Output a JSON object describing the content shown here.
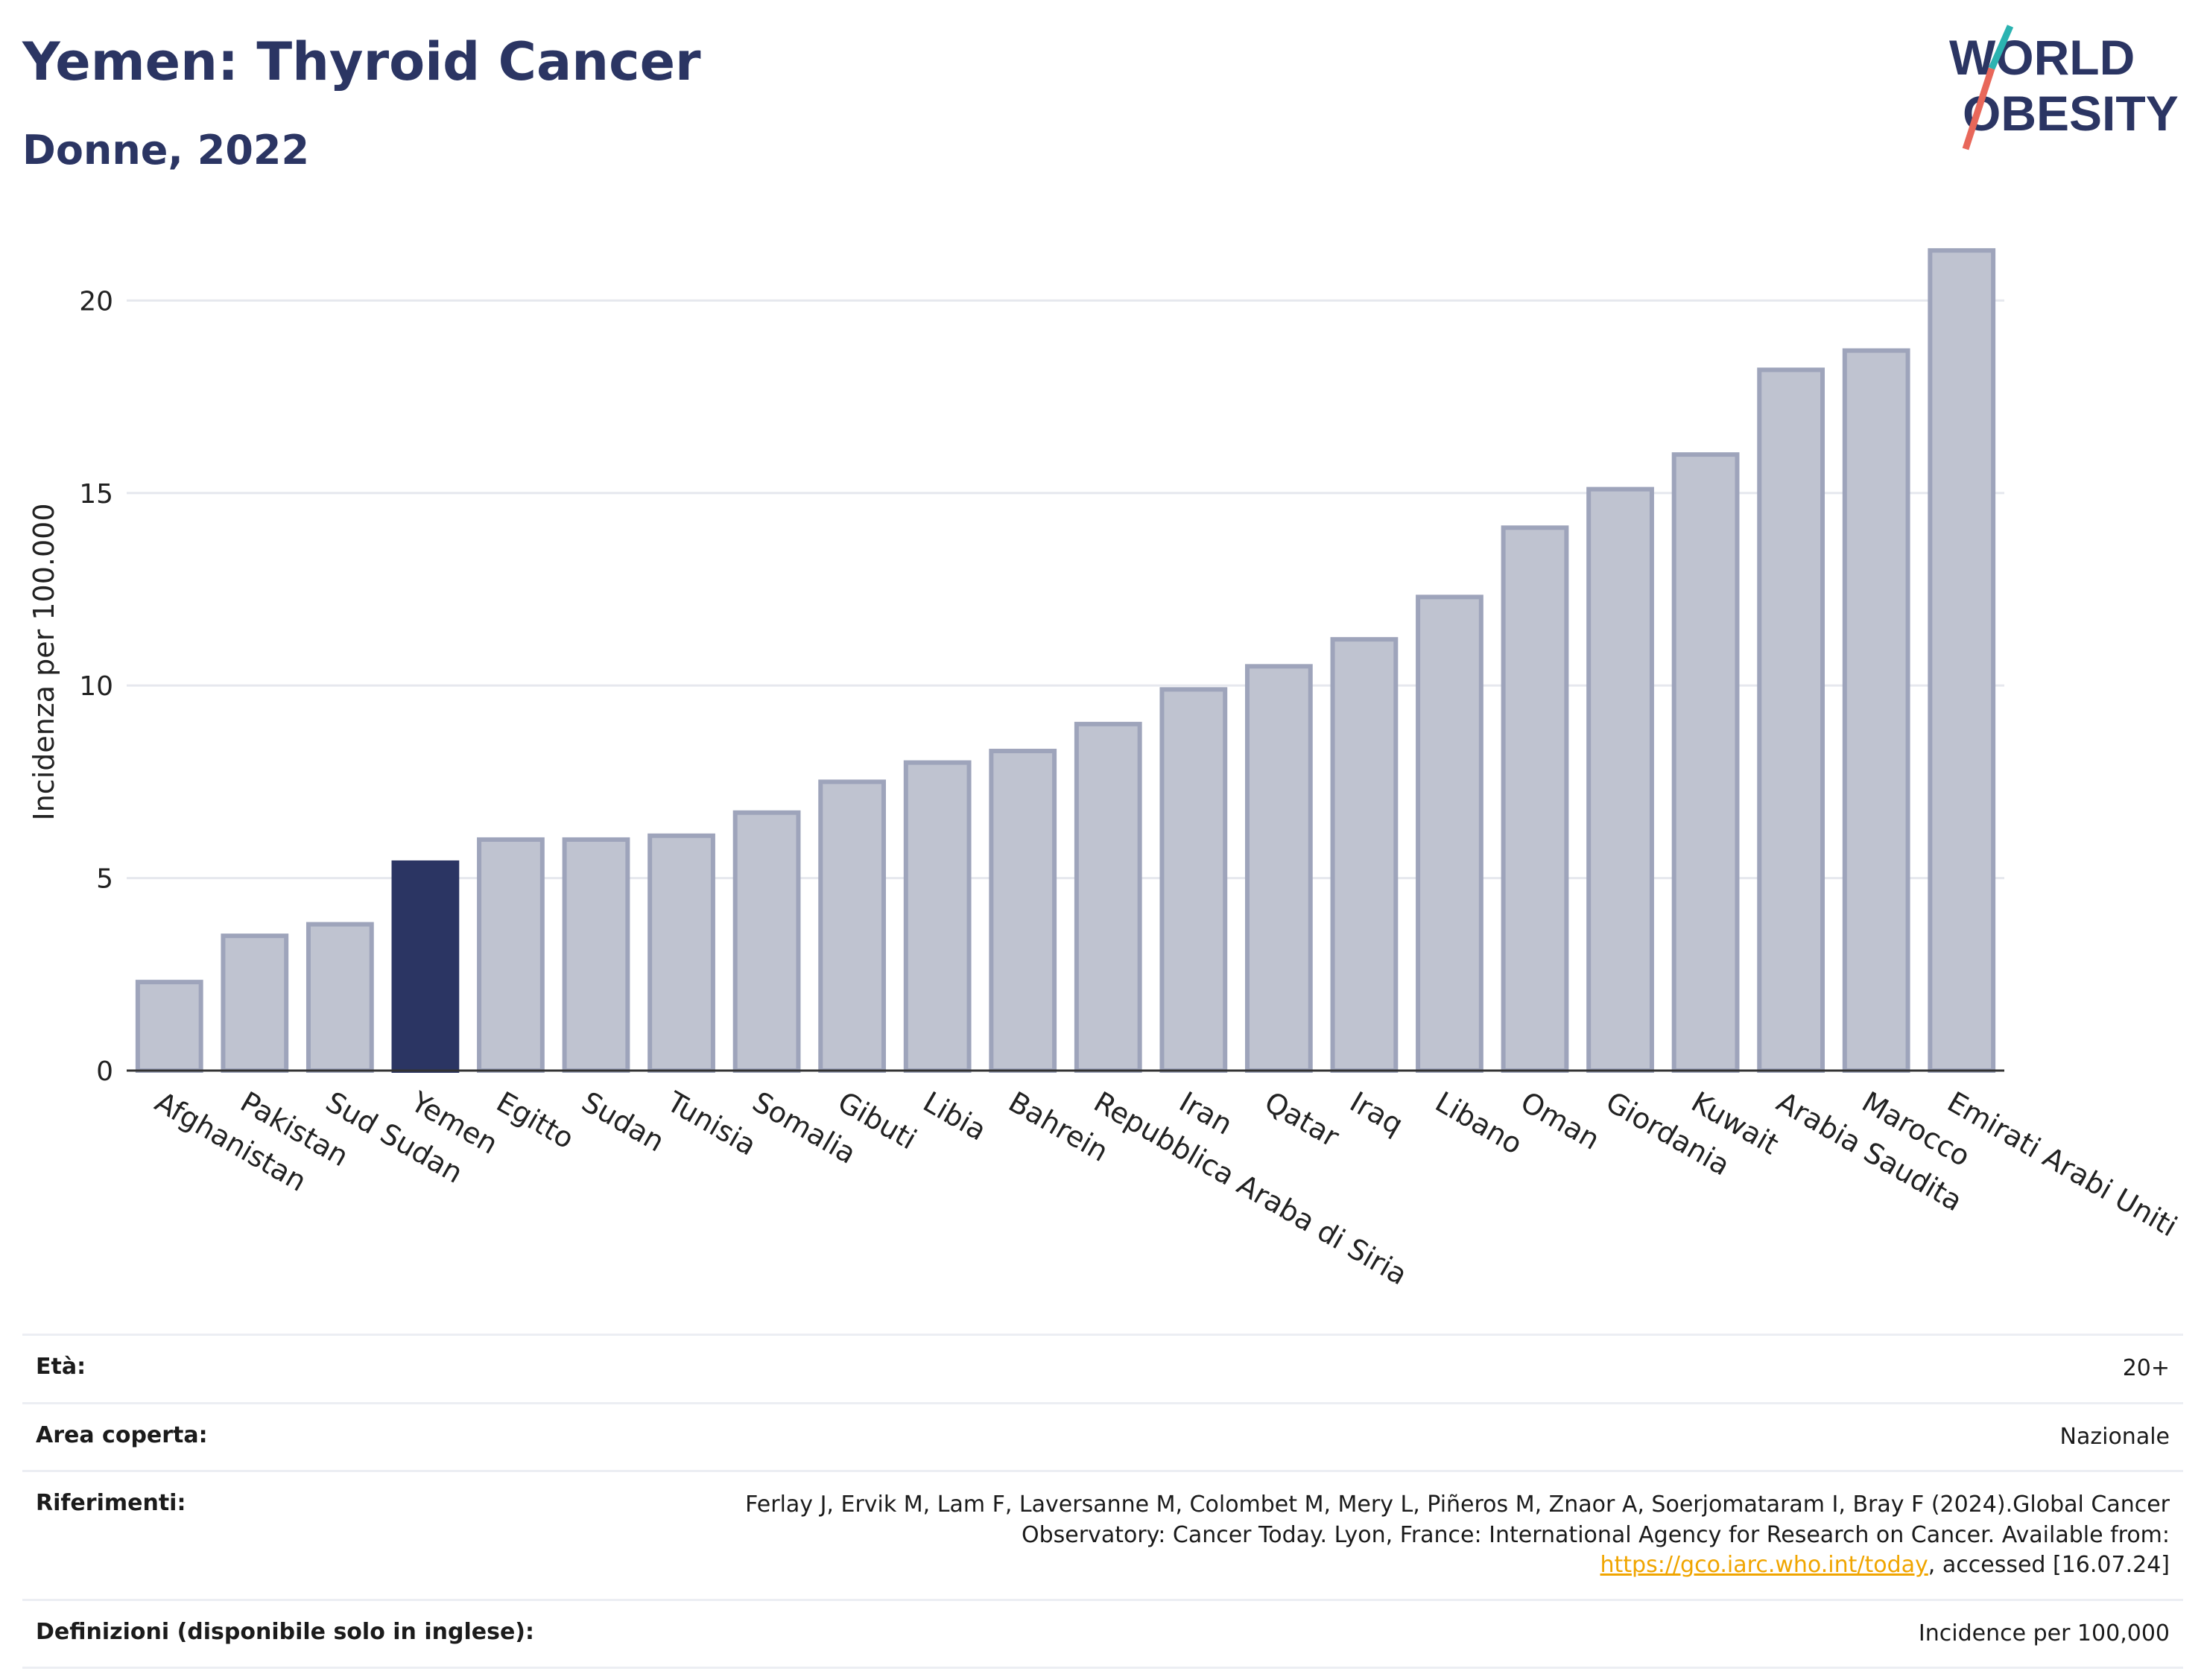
{
  "title": "Yemen: Thyroid Cancer",
  "subtitle": "Donne, 2022",
  "logo": {
    "line1": "WORLD",
    "line2": "OBESITY"
  },
  "colors": {
    "highlight": "#2b3563",
    "bar": "#bfc3d0",
    "bar_stroke": "#9ea4bb",
    "title": "#2b3563",
    "accent1": "#2bb3b1",
    "accent2": "#e8675a"
  },
  "chart_data": {
    "type": "bar",
    "ylabel": "Incidenza per 100.000",
    "ylim": [
      0,
      22
    ],
    "yticks": [
      0,
      5,
      10,
      15,
      20
    ],
    "grid": true,
    "highlight": "Yemen",
    "categories": [
      "Afghanistan",
      "Pakistan",
      "Sud Sudan",
      "Yemen",
      "Egitto",
      "Sudan",
      "Tunisia",
      "Somalia",
      "Gibuti",
      "Libia",
      "Bahrein",
      "Repubblica Araba di Siria",
      "Iran",
      "Qatar",
      "Iraq",
      "Libano",
      "Oman",
      "Giordania",
      "Kuwait",
      "Arabia Saudita",
      "Marocco",
      "Emirati Arabi Uniti"
    ],
    "values": [
      2.3,
      3.5,
      3.8,
      5.4,
      6.0,
      6.0,
      6.1,
      6.7,
      7.5,
      8.0,
      8.3,
      9.0,
      9.9,
      10.5,
      11.2,
      12.3,
      14.1,
      15.1,
      16.0,
      18.2,
      18.7,
      21.3
    ]
  },
  "table": [
    {
      "label": "Età:",
      "value": "20+"
    },
    {
      "label": "Area coperta:",
      "value": "Nazionale"
    },
    {
      "label": "Riferimenti:",
      "value_pre": "Ferlay J, Ervik M, Lam F, Laversanne M, Colombet M, Mery L, Piñeros M, Znaor A, Soerjomataram I, Bray F (2024).Global Cancer Observatory: Cancer Today. Lyon, France: International Agency for Research on Cancer. Available from: ",
      "link": "https://gco.iarc.who.int/today",
      "value_post": ", accessed [16.07.24]"
    },
    {
      "label": "Definizioni (disponibile solo in inglese):",
      "value": "Incidence per 100,000"
    }
  ]
}
